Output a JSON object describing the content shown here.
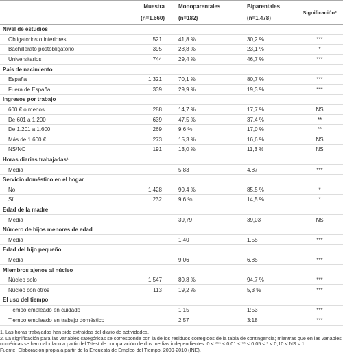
{
  "table": {
    "header": [
      "Muestra",
      "(n=1.660)",
      "Monoparentales",
      "(n=182)",
      "Biparentales",
      "(n=1.478)",
      "Significación²"
    ],
    "sections": [
      {
        "title": "Nivel de estudios",
        "rows": [
          [
            "Obligatorios o inferiores",
            "521",
            "41,8 %",
            "30,2 %",
            "***"
          ],
          [
            "Bachillerato postobligatorio",
            "395",
            "28,8 %",
            "23,1 %",
            "*"
          ],
          [
            "Universitarios",
            "744",
            "29,4 %",
            "46,7 %",
            "***"
          ]
        ]
      },
      {
        "title": "País de nacimiento",
        "rows": [
          [
            "España",
            "1.321",
            "70,1 %",
            "80,7 %",
            "***"
          ],
          [
            "Fuera de España",
            "339",
            "29,9 %",
            "19,3 %",
            "***"
          ]
        ]
      },
      {
        "title": "Ingresos por trabajo",
        "rows": [
          [
            "600 € o menos",
            "288",
            "14,7 %",
            "17,7 %",
            "NS"
          ],
          [
            "De 601 a 1.200",
            "639",
            "47,5 %",
            "37,4 %",
            "**"
          ],
          [
            "De 1.201 a 1.600",
            "269",
            "9,6 %",
            "17,0 %",
            "**"
          ],
          [
            "Más de 1.600 €",
            "273",
            "15,3 %",
            "16,6 %",
            "NS"
          ],
          [
            "NS/NC",
            "191",
            "13,0 %",
            "11,3 %",
            "NS"
          ]
        ]
      },
      {
        "title": "Horas diarias trabajadas¹",
        "rows": [
          [
            "Media",
            null,
            "5,83",
            "4,87",
            "***"
          ]
        ]
      },
      {
        "title": "Servicio doméstico en el hogar",
        "rows": [
          [
            "No",
            "1.428",
            "90,4 %",
            "85,5 %",
            "*"
          ],
          [
            "Sí",
            "232",
            "9,6 %",
            "14,5 %",
            "*"
          ]
        ]
      },
      {
        "title": "Edad de la madre",
        "rows": [
          [
            "Media",
            null,
            "39,79",
            "39,03",
            "NS"
          ]
        ]
      },
      {
        "title": "Número de hijos menores de edad",
        "rows": [
          [
            "Media",
            null,
            "1,40",
            "1,55",
            "***"
          ]
        ]
      },
      {
        "title": "Edad del hijo pequeño",
        "rows": [
          [
            "Media",
            null,
            "9,06",
            "6,85",
            "***"
          ]
        ]
      },
      {
        "title": "Miembros ajenos al núcleo",
        "rows": [
          [
            "Núcleo solo",
            "1.547",
            "80,8 %",
            "94,7 %",
            "***"
          ],
          [
            "Núcleo con otros",
            "113",
            "19,2 %",
            "5,3 %",
            "***"
          ]
        ]
      },
      {
        "title": "El uso del tiempo",
        "rows": [
          [
            "Tiempo empleado en cuidado",
            null,
            "1:15",
            "1:53",
            "***"
          ],
          [
            "Tiempo empleado en trabajo doméstico",
            null,
            "2:57",
            "3:18",
            "***"
          ]
        ]
      }
    ]
  },
  "notes": [
    "1. Las horas trabajadas han sido extraídas del diario de actividades.",
    "2. La significación para las variables categóricas se corresponde con la de los residuos corregidos de la tabla de contingencia; mientras que en las vanables numéricas se han calculado a partir del T-test de comparación de dos medias independientes: 0 < *** < 0,01 < ** < 0,05 < * < 0,10 < NS < 1.",
    "Fuente: Elaboración propia a partir de la Encuesta de Empleo del Tiempo, 2009-2010 (INE)."
  ]
}
